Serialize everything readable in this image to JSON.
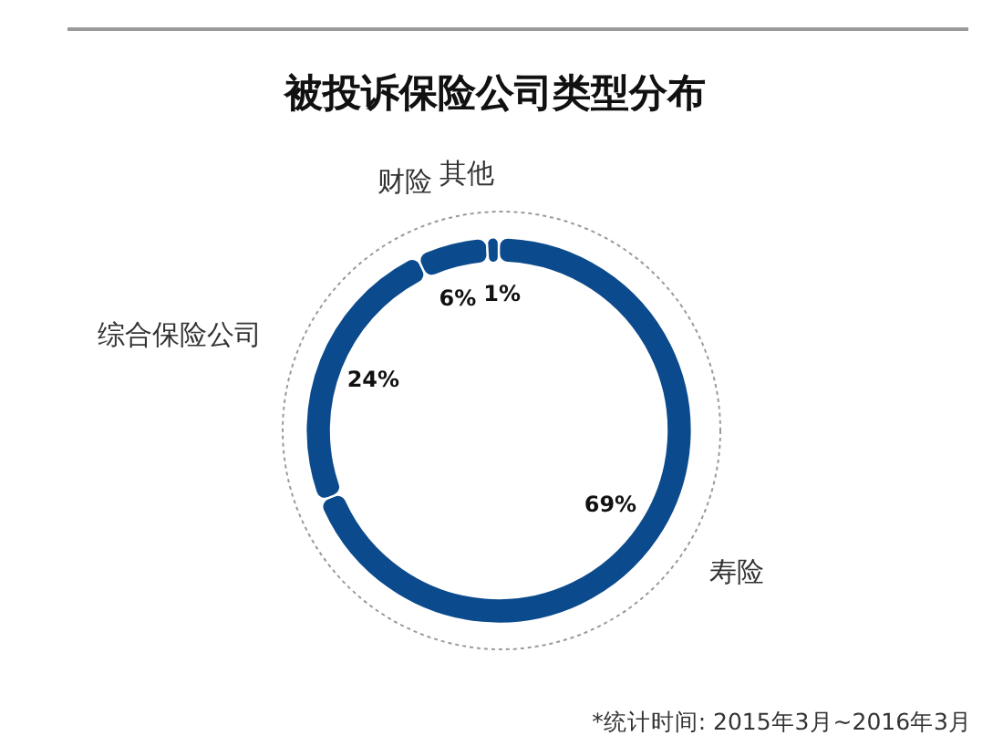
{
  "chart_data": {
    "type": "donut",
    "title": "被投诉保险公司类型分布",
    "categories": [
      "寿险",
      "综合保险公司",
      "财险",
      "其他"
    ],
    "values": [
      69,
      24,
      6,
      1
    ],
    "colors": [
      "#0b4a8c",
      "#0b4a8c",
      "#0b4a8c",
      "#0b4a8c"
    ],
    "value_labels": [
      "69%",
      "24%",
      "6%",
      "1%"
    ],
    "annotations": [
      "*统计时间: 2015年3月~2016年3月"
    ],
    "legend": false
  }
}
